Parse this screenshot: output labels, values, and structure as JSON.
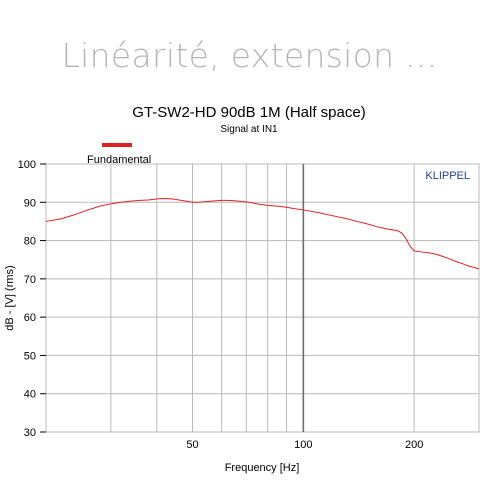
{
  "slide": {
    "heading": "Linéarité, extension ..."
  },
  "chart_data": {
    "type": "line",
    "title": "GT-SW2-HD  90dB 1M (Half space)",
    "subtitle": "Signal at IN1",
    "xlabel": "Frequency [Hz]",
    "ylabel": "dB - [V]  (rms)",
    "brand": "KLIPPEL",
    "x_scale": "log",
    "xlim": [
      20,
      300
    ],
    "ylim": [
      30,
      100
    ],
    "x_ticks": [
      50,
      100,
      200
    ],
    "y_ticks": [
      30,
      40,
      50,
      60,
      70,
      80,
      90,
      100
    ],
    "grid": true,
    "legend_position": "top-left",
    "series": [
      {
        "name": "Fundamental",
        "color": "#e02020",
        "x": [
          20,
          22,
          24,
          26,
          28,
          30,
          32,
          34,
          35,
          36,
          38,
          40,
          42,
          44,
          46,
          48,
          50,
          52,
          55,
          58,
          60,
          62,
          65,
          70,
          75,
          80,
          85,
          90,
          95,
          100,
          110,
          120,
          130,
          140,
          150,
          160,
          170,
          180,
          185,
          190,
          195,
          200,
          210,
          220,
          230,
          240,
          250,
          260,
          270,
          280,
          290,
          300
        ],
        "y": [
          85.0,
          85.7,
          86.8,
          88.0,
          89.0,
          89.6,
          90.0,
          90.3,
          90.4,
          90.5,
          90.6,
          90.9,
          91.0,
          90.9,
          90.6,
          90.3,
          90.0,
          90.0,
          90.2,
          90.4,
          90.5,
          90.5,
          90.4,
          90.1,
          89.6,
          89.2,
          89.0,
          88.7,
          88.3,
          88.0,
          87.3,
          86.5,
          85.8,
          85.0,
          84.3,
          83.5,
          83.0,
          82.6,
          82.0,
          80.5,
          78.5,
          77.3,
          77.0,
          76.8,
          76.4,
          75.8,
          75.2,
          74.5,
          74.0,
          73.4,
          73.0,
          72.6
        ]
      }
    ]
  }
}
